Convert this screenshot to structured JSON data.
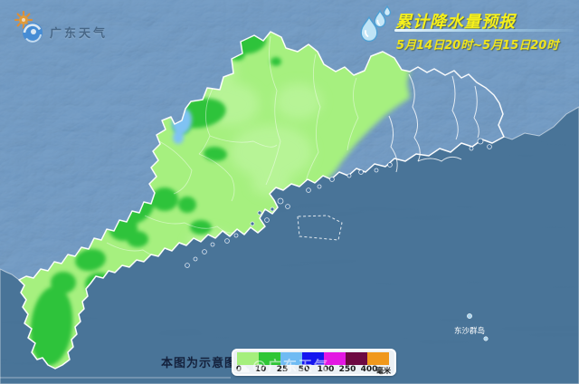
{
  "header": {
    "logo_text": "广东天气",
    "logo_icon": "sun-typhoon-swirl-icon",
    "title_icon": "raindrops-icon",
    "title": "累计降水量预报",
    "subtitle": "5月14日20时~5月15日20时"
  },
  "map": {
    "island_label": "东沙群岛"
  },
  "legend": {
    "note": "本图为示意图",
    "ticks": [
      "0",
      "10",
      "25",
      "50",
      "100",
      "250",
      "400"
    ],
    "unit": "毫米",
    "colors": [
      "#a5ef7d",
      "#2ec636",
      "#6fbbf3",
      "#1415ef",
      "#e318e3",
      "#6d0942",
      "#f0981c"
    ]
  },
  "watermark": {
    "icon": "cloud-icon",
    "text": "@广东天气"
  },
  "palette": {
    "sea": "#3c6a91",
    "land_base": "#5f8bb9",
    "rain_light": "#a6f07f",
    "rain_heavy": "#2fc33a",
    "rain_moderate_blue": "#7fc2f3",
    "accent_yellow": "#f6f01b",
    "border_white": "#ffffff"
  }
}
